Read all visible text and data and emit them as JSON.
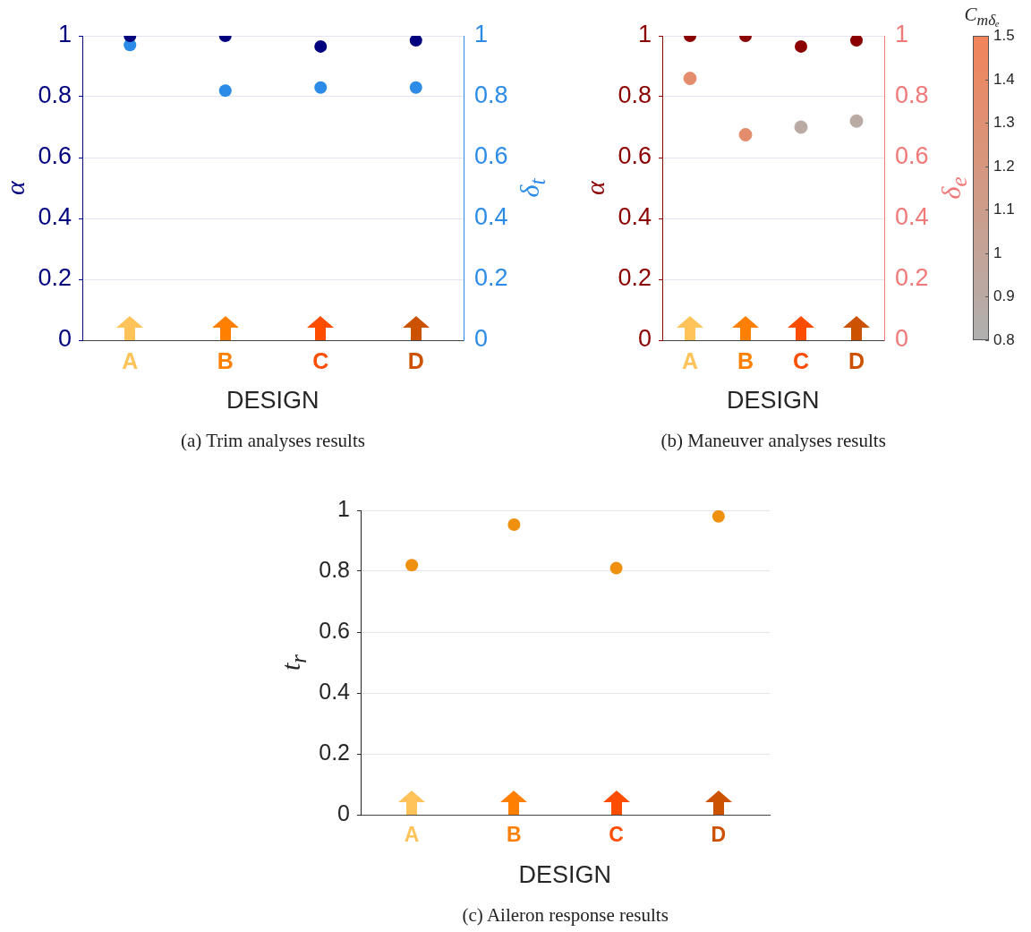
{
  "chart_data": [
    {
      "type": "scatter",
      "title": "(a) Trim analyses results",
      "xlabel": "DESIGN",
      "ylabel": "α",
      "y2label": "δ$_{t}$",
      "categories": [
        "A",
        "B",
        "C",
        "D"
      ],
      "series": [
        {
          "color": "#00007f",
          "values": [
            1,
            1,
            0.965,
            0.985
          ]
        },
        {
          "color": "#2b8be6",
          "axis": "y2",
          "values": [
            0.97,
            0.82,
            0.83,
            0.83
          ]
        }
      ],
      "ylim": [
        0,
        1
      ],
      "yticks": [
        0,
        0.2,
        0.4,
        0.6,
        0.8,
        1
      ],
      "y2lim": [
        0,
        1
      ],
      "y2ticks": [
        0,
        0.2,
        0.4,
        0.6,
        0.8,
        1
      ],
      "grid": "y",
      "marker": "circle"
    },
    {
      "type": "scatter",
      "title": "(b) Maneuver analyses results",
      "xlabel": "DESIGN",
      "ylabel": "α",
      "y2label": "δ$_{e}$",
      "clabel": "C$_{mδₑ}$",
      "categories": [
        "A",
        "B",
        "C",
        "D"
      ],
      "series": [
        {
          "color": "#8b0000",
          "values": [
            1,
            1,
            0.965,
            0.985
          ]
        },
        {
          "axis": "y2",
          "values": [
            0.86,
            0.675,
            0.7,
            0.72
          ],
          "colors": [
            "#e48d6c",
            "#e48d6c",
            "#b9aaa4",
            "#b9aaa4"
          ],
          "cvalues": [
            1.35,
            1.35,
            0.9,
            0.9
          ]
        }
      ],
      "ylim": [
        0,
        1
      ],
      "yticks": [
        0,
        0.2,
        0.4,
        0.6,
        0.8,
        1
      ],
      "y2lim": [
        0,
        1
      ],
      "y2ticks": [
        0,
        0.2,
        0.4,
        0.6,
        0.8,
        1
      ],
      "clim": [
        0.8,
        1.5
      ],
      "cticks": [
        0.8,
        0.9,
        1,
        1.1,
        1.2,
        1.3,
        1.4,
        1.5
      ],
      "grid": "y",
      "marker": "circle"
    },
    {
      "type": "scatter",
      "title": "(c) Aileron response results",
      "xlabel": "DESIGN",
      "ylabel": "t$_{r}$",
      "categories": [
        "A",
        "B",
        "C",
        "D"
      ],
      "series": [
        {
          "color": "#f0900f",
          "values": [
            0.82,
            0.953,
            0.81,
            0.98
          ]
        }
      ],
      "ylim": [
        0,
        1
      ],
      "yticks": [
        0,
        0.2,
        0.4,
        0.6,
        0.8,
        1
      ],
      "grid": "y",
      "marker": "circle"
    }
  ]
}
